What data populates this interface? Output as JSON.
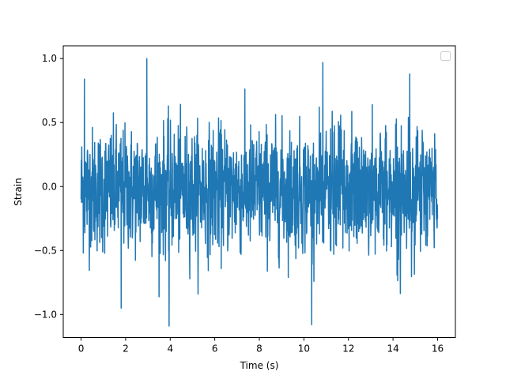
{
  "chart_data": {
    "type": "line",
    "title": "",
    "xlabel": "Time (s)",
    "ylabel": "Strain",
    "xlim": [
      -0.8,
      16.8
    ],
    "ylim": [
      -1.18,
      1.1
    ],
    "x_ticks": [
      0,
      2,
      4,
      6,
      8,
      10,
      12,
      14,
      16
    ],
    "x_tick_labels": [
      "0",
      "2",
      "4",
      "6",
      "8",
      "10",
      "12",
      "14",
      "16"
    ],
    "y_ticks": [
      -1.0,
      -0.5,
      0.0,
      0.5,
      1.0
    ],
    "y_tick_labels": [
      "−1.0",
      "−0.5",
      "0.0",
      "0.5",
      "1.0"
    ],
    "grid": false,
    "legend": {
      "placement": "top-right",
      "entries": []
    },
    "series": [
      {
        "color": "#1f77b4",
        "x_range": [
          0,
          16
        ],
        "sample_step": 0.01,
        "typical_envelope": [
          -0.65,
          0.6
        ],
        "peaks": [
          {
            "x": 2.95,
            "y": 1.0
          },
          {
            "x": 3.95,
            "y": -1.09
          },
          {
            "x": 10.35,
            "y": -1.08
          },
          {
            "x": 10.85,
            "y": 0.97
          },
          {
            "x": 1.8,
            "y": -0.95
          },
          {
            "x": 0.15,
            "y": 0.84
          },
          {
            "x": 14.75,
            "y": 0.88
          }
        ]
      }
    ]
  }
}
